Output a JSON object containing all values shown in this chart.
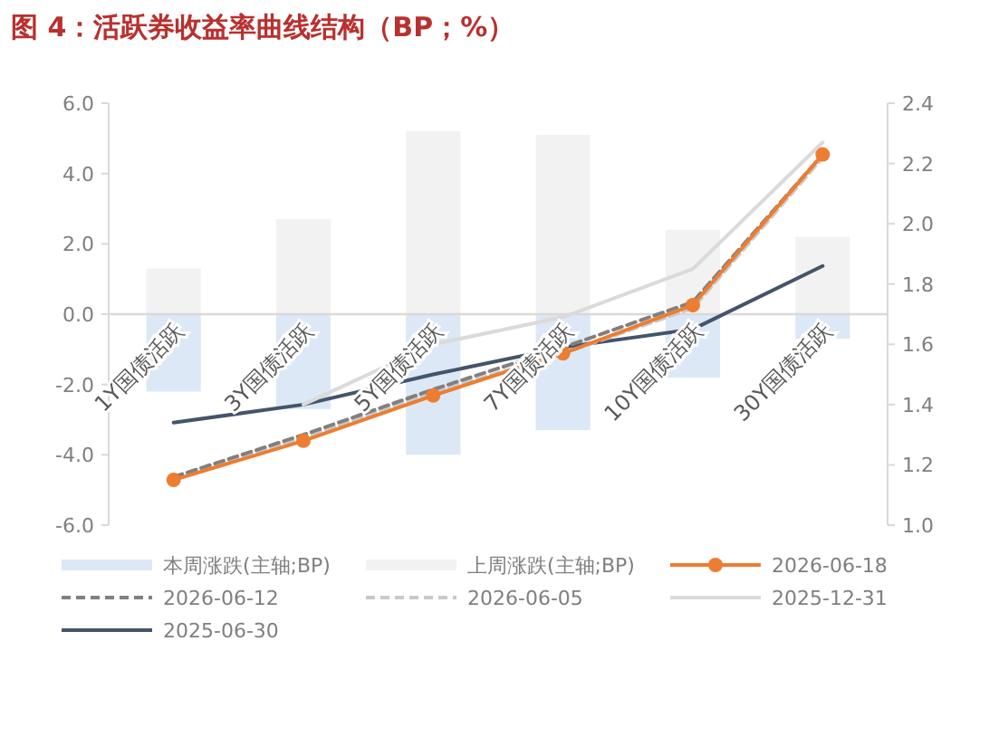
{
  "chart_data": {
    "type": "bar",
    "title": "图 4：活跃券收益率曲线结构（BP；%）",
    "categories": [
      "1Y国债活跃",
      "3Y国债活跃",
      "5Y国债活跃",
      "7Y国债活跃",
      "10Y国债活跃",
      "30Y国债活跃"
    ],
    "series": [
      {
        "name": "本周涨跌(主轴;BP)",
        "type": "bar",
        "color": "#dce8f5",
        "values": [
          -2.2,
          -2.7,
          -4.0,
          -3.3,
          -1.8,
          -0.7
        ]
      },
      {
        "name": "上周涨跌(主轴;BP)",
        "type": "bar",
        "color": "#f2f2f2",
        "values": [
          1.3,
          2.7,
          5.2,
          5.1,
          2.4,
          2.2
        ]
      },
      {
        "name": "2026-06-18",
        "type": "line",
        "axis": "y2",
        "color": "#ed7d31",
        "line_style": "solid",
        "marker": "circle",
        "values": [
          1.15,
          1.28,
          1.43,
          1.57,
          1.73,
          2.23
        ]
      },
      {
        "name": "2026-06-12",
        "type": "line",
        "axis": "y2",
        "color": "#808080",
        "line_style": "dashed",
        "marker": "none",
        "values": [
          1.16,
          1.3,
          1.45,
          1.59,
          1.74,
          2.23
        ]
      },
      {
        "name": "2026-06-05",
        "type": "line",
        "axis": "y2",
        "color": "#c9c9c9",
        "line_style": "dashed",
        "marker": "none",
        "values": [
          1.16,
          1.29,
          1.44,
          1.57,
          1.72,
          2.22
        ]
      },
      {
        "name": "2025-12-31",
        "type": "line",
        "axis": "y2",
        "color": "#dadada",
        "line_style": "solid",
        "marker": "none",
        "values": [
          null,
          1.4,
          1.6,
          1.69,
          1.85,
          2.27
        ]
      },
      {
        "name": "2025-06-30",
        "type": "line",
        "axis": "y2",
        "color": "#44546a",
        "line_style": "solid",
        "marker": "none",
        "values": [
          1.34,
          1.4,
          1.5,
          1.59,
          1.65,
          1.86
        ]
      }
    ],
    "stacked": true,
    "ylim": [
      -6,
      6
    ],
    "yticks": [
      {
        "value": -6,
        "label": "-6.0"
      },
      {
        "value": -4,
        "label": "-4.0"
      },
      {
        "value": -2,
        "label": "-2.0"
      },
      {
        "value": 0,
        "label": "0.0"
      },
      {
        "value": 2,
        "label": "2.0"
      },
      {
        "value": 4,
        "label": "4.0"
      },
      {
        "value": 6,
        "label": "6.0"
      }
    ],
    "y2lim": [
      1.0,
      2.4
    ],
    "y2ticks": [
      {
        "value": 1.0,
        "label": "1.0"
      },
      {
        "value": 1.2,
        "label": "1.2"
      },
      {
        "value": 1.4,
        "label": "1.4"
      },
      {
        "value": 1.6,
        "label": "1.6"
      },
      {
        "value": 1.8,
        "label": "1.8"
      },
      {
        "value": 2.0,
        "label": "2.0"
      },
      {
        "value": 2.2,
        "label": "2.2"
      },
      {
        "value": 2.4,
        "label": "2.4"
      }
    ],
    "grid": false,
    "legend": "bottom"
  }
}
